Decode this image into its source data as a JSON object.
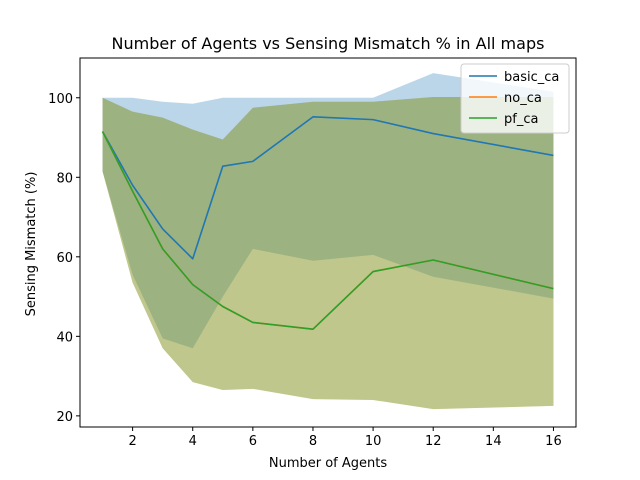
{
  "chart_data": {
    "type": "line",
    "title": "Number of Agents vs Sensing Mismatch % in All maps",
    "xlabel": "Number of Agents",
    "ylabel": "Sensing Mismatch (%)",
    "xlim": [
      0.25,
      16.75
    ],
    "ylim": [
      17.2,
      110
    ],
    "xticks": [
      2,
      4,
      6,
      8,
      10,
      12,
      14,
      16
    ],
    "yticks": [
      20,
      40,
      60,
      80,
      100
    ],
    "grid": false,
    "legend_position": "top-right",
    "x": [
      1,
      2,
      3,
      4,
      5,
      6,
      8,
      10,
      12,
      16
    ],
    "series": [
      {
        "name": "basic_ca",
        "color": "#1f77b4",
        "values": [
          91.5,
          78.0,
          67.0,
          59.5,
          82.8,
          84.0,
          95.2,
          94.5,
          91.0,
          85.5
        ],
        "band_lower": [
          81.5,
          55.5,
          39.5,
          37.0,
          50.0,
          62.0,
          59.0,
          60.5,
          55.0,
          49.5
        ],
        "band_upper": [
          100.0,
          100.0,
          99.0,
          98.5,
          100.0,
          100.0,
          100.0,
          100.0,
          106.2,
          101.5
        ]
      },
      {
        "name": "no_ca",
        "color": "#ff7f0e",
        "values": [
          91.5,
          76.5,
          62.0,
          53.0,
          47.5,
          43.5,
          41.8,
          56.3,
          59.2,
          52.0
        ],
        "band_lower": [
          81.5,
          53.5,
          37.0,
          28.5,
          26.5,
          26.8,
          24.2,
          24.0,
          21.7,
          22.5
        ],
        "band_upper": [
          100.0,
          96.5,
          95.0,
          92.0,
          89.5,
          97.5,
          99.0,
          99.0,
          100.2,
          100.2
        ]
      },
      {
        "name": "pf_ca",
        "color": "#2ca02c",
        "values": [
          91.5,
          76.5,
          62.0,
          53.0,
          47.5,
          43.5,
          41.8,
          56.3,
          59.2,
          52.0
        ],
        "band_lower": [
          81.5,
          53.5,
          37.0,
          28.5,
          26.5,
          26.8,
          24.2,
          24.0,
          21.7,
          22.5
        ],
        "band_upper": [
          100.0,
          96.5,
          95.0,
          92.0,
          89.5,
          97.5,
          99.0,
          99.0,
          100.2,
          100.2
        ]
      }
    ]
  }
}
